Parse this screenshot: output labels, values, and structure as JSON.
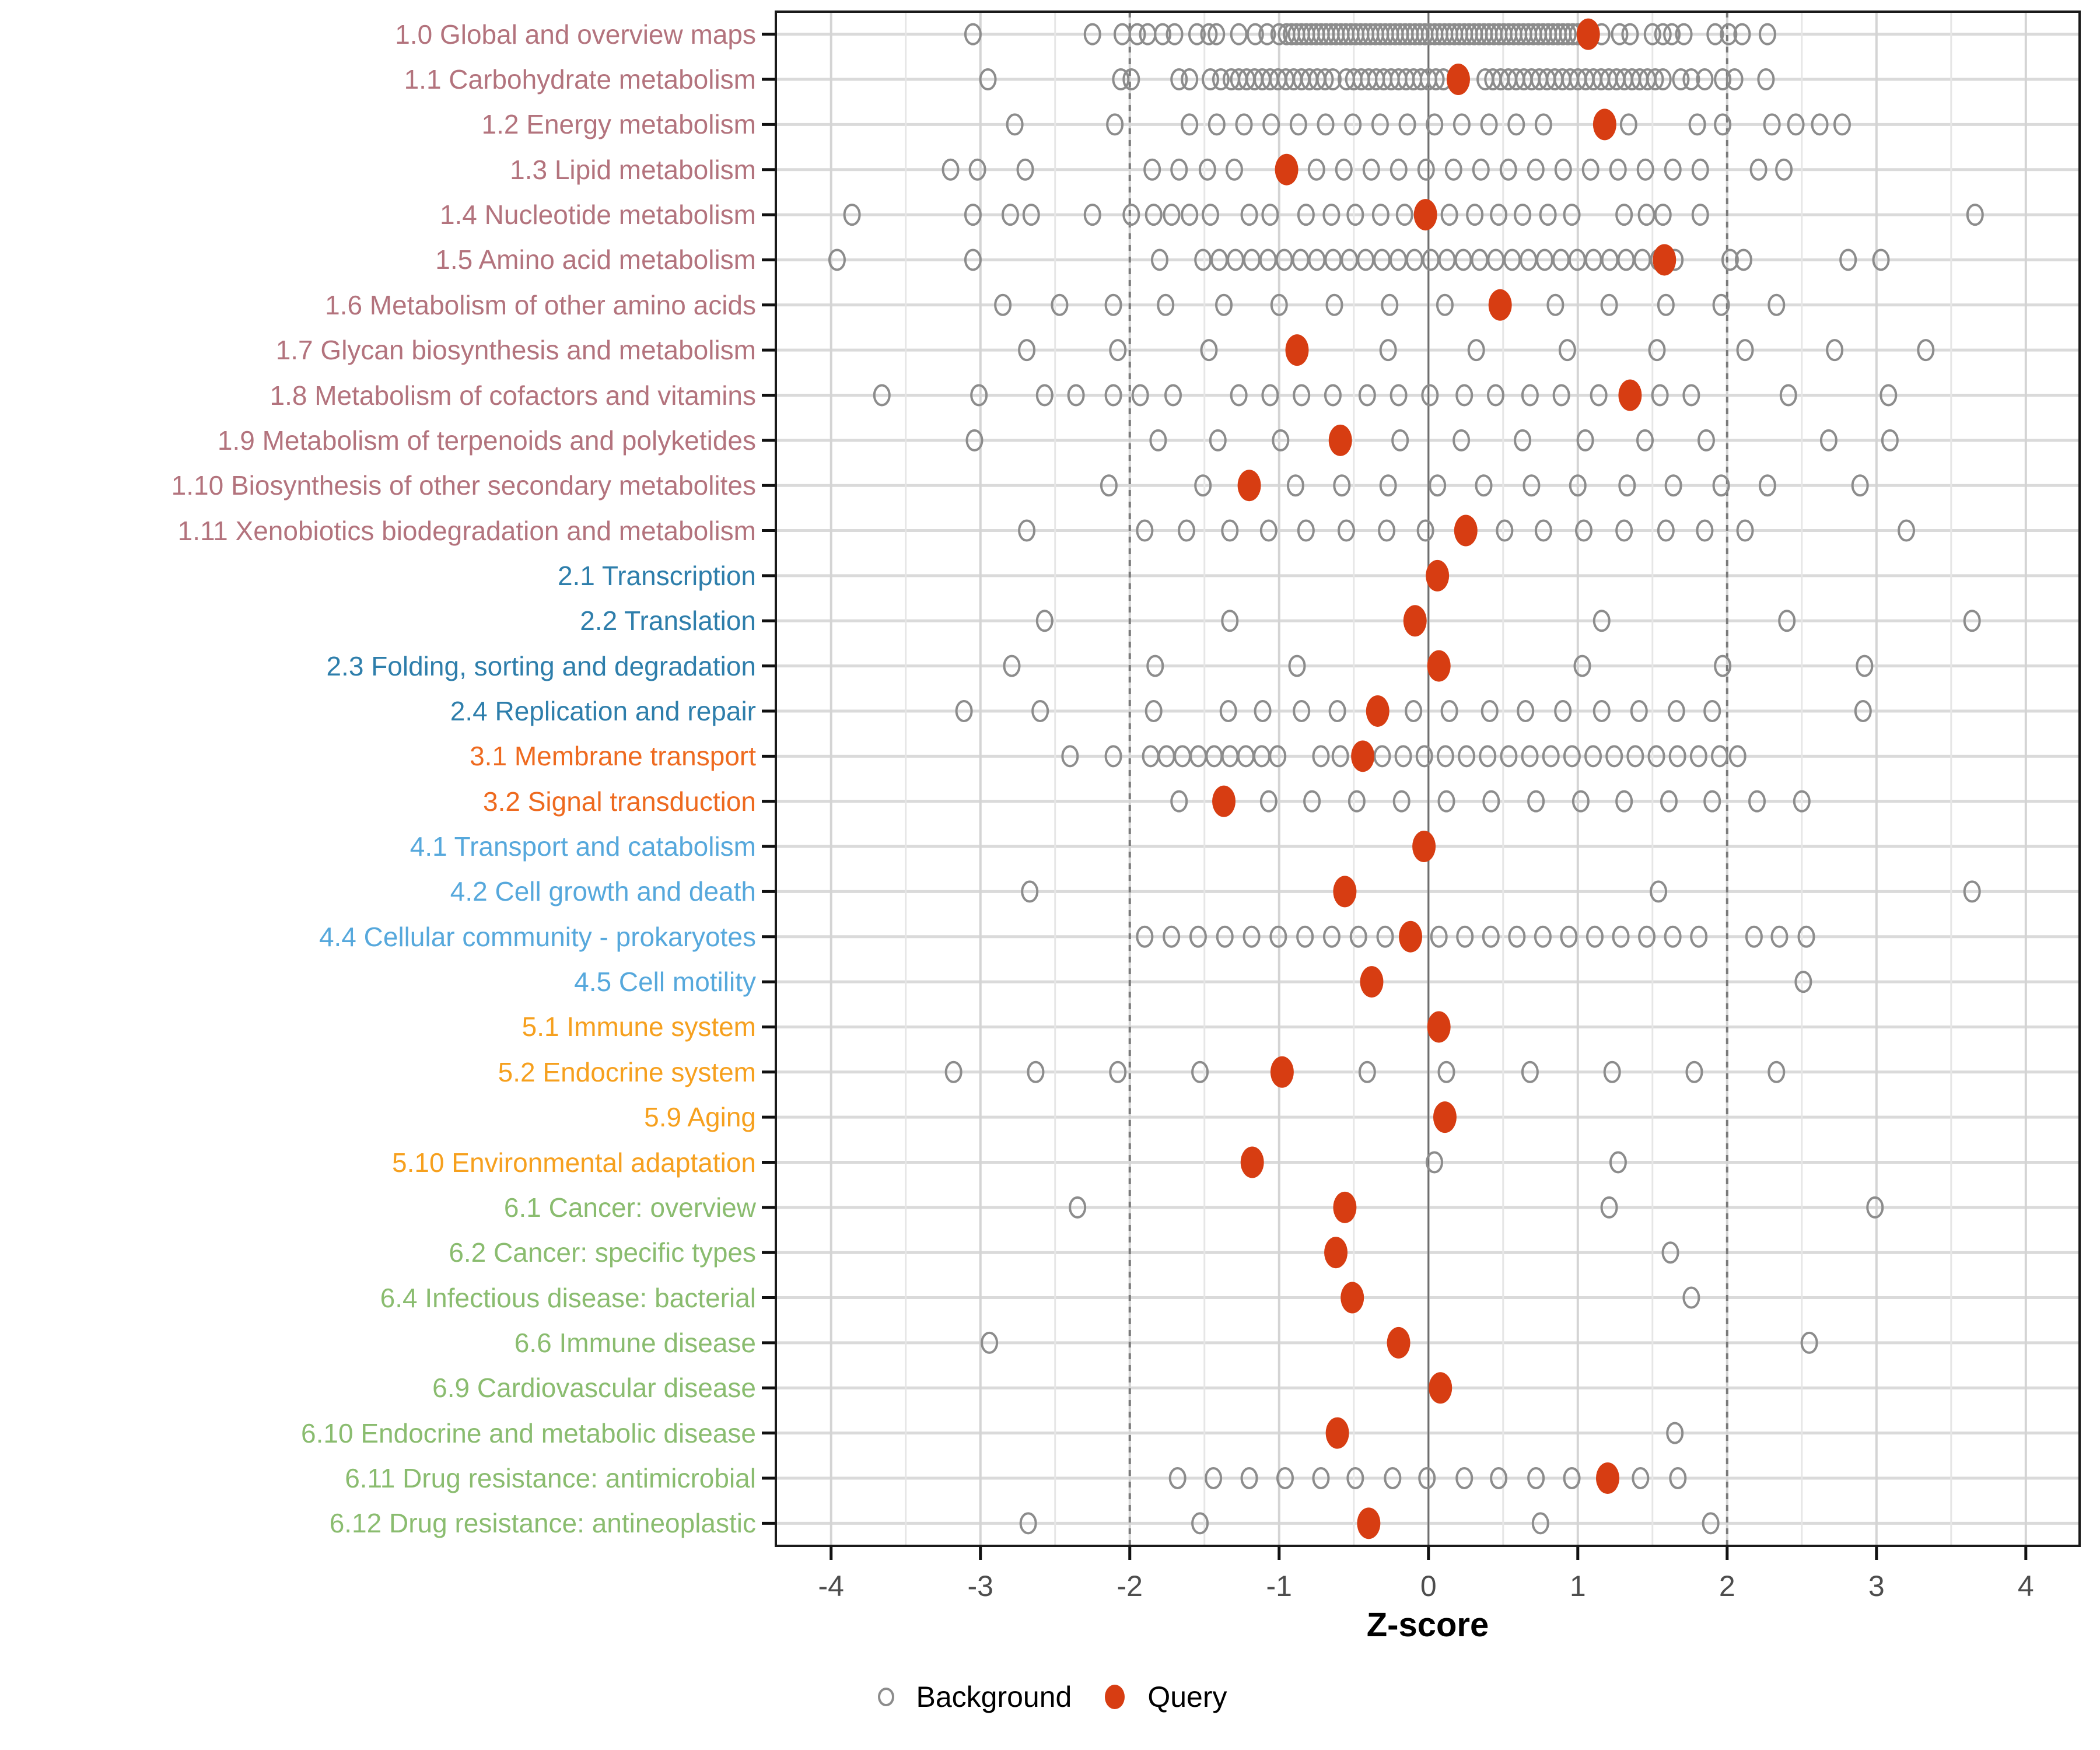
{
  "axis": {
    "xlabel": "Z-score",
    "ticks": [
      -4,
      -3,
      -2,
      -1,
      0,
      1,
      2,
      3,
      4
    ],
    "xlim": [
      -4.37,
      4.36
    ],
    "zero_line": 0,
    "dashed_lines": [
      -2,
      2
    ],
    "grid": "on",
    "legend_position": "bottom"
  },
  "legend": {
    "background_label": "Background",
    "query_label": "Query"
  },
  "colors": {
    "query": "#D73D12",
    "background_stroke": "#8C8C8C",
    "grid_major": "#D4D4D4",
    "grid_minor": "#E6E6E6",
    "row_gridline": "#DADADA",
    "threshold_dashed": "#7A7A7A",
    "zero_line": "#6E6E6E",
    "panel_border": "#1A1A1A",
    "tick_label": "#4D4D4D",
    "group_colors": {
      "metabolism": "#B3737D",
      "genetic-information-processing": "#2E7EAB",
      "environmental-information-processing": "#EE6A1F",
      "cellular-processes": "#56A8DC",
      "organismal-systems": "#F6A01E",
      "human-diseases": "#8ABC6F"
    }
  },
  "chart_data": {
    "type": "scatter",
    "orientation": "horizontal-strip",
    "xlabel": "Z-score",
    "series": [
      {
        "name": "Background"
      },
      {
        "name": "Query"
      }
    ],
    "rows": [
      {
        "label": "1.0 Global and overview maps",
        "group": "metabolism",
        "query": 1.07,
        "background": [
          -3.05,
          -2.25,
          -2.05,
          -1.95,
          -1.88,
          -1.78,
          -1.7,
          -1.55,
          -1.47,
          -1.42,
          -1.27,
          -1.16,
          -1.08,
          -1.0,
          1.16,
          1.28,
          1.35,
          1.5,
          1.57,
          1.63,
          1.71,
          1.92,
          2.01,
          2.1,
          2.27
        ],
        "background_bands": [
          [
            -0.95,
            1.0,
            60
          ]
        ]
      },
      {
        "label": "1.1 Carbohydrate metabolism",
        "group": "metabolism",
        "query": 0.2,
        "background": [
          -2.95,
          -2.06,
          -1.99,
          -1.67,
          -1.6,
          -1.46,
          -1.39,
          -1.32,
          1.69,
          1.76,
          1.85,
          1.97,
          2.05,
          2.26
        ],
        "background_bands": [
          [
            -1.27,
            -0.64,
            13
          ],
          [
            -0.55,
            0.1,
            14
          ],
          [
            0.38,
            1.57,
            24
          ]
        ]
      },
      {
        "label": "1.2 Energy metabolism",
        "group": "metabolism",
        "query": 1.18,
        "background": [
          -2.77,
          -2.1,
          1.34,
          1.8,
          1.97,
          2.3,
          2.46,
          2.62,
          2.77
        ],
        "background_bands": [
          [
            -1.6,
            0.77,
            14
          ]
        ]
      },
      {
        "label": "1.3 Lipid metabolism",
        "group": "metabolism",
        "query": -0.95,
        "background": [
          -3.2,
          -3.02,
          -2.7,
          -1.85,
          -1.67,
          -1.48,
          -1.3,
          2.21,
          2.38
        ],
        "background_bands": [
          [
            -0.75,
            1.82,
            15
          ]
        ]
      },
      {
        "label": "1.4 Nucleotide metabolism",
        "group": "metabolism",
        "query": -0.02,
        "background": [
          -3.86,
          -3.05,
          -2.8,
          -2.66,
          -2.25,
          -1.99,
          -1.84,
          -1.72,
          -1.6,
          -1.46,
          -1.2,
          -1.06,
          -0.82,
          -0.65,
          -0.49,
          -0.32,
          -0.16,
          0.14,
          0.31,
          0.47,
          0.63,
          0.8,
          0.96,
          1.31,
          1.46,
          1.57,
          1.82,
          3.66
        ],
        "background_bands": []
      },
      {
        "label": "1.5 Amino acid metabolism",
        "group": "metabolism",
        "query": 1.58,
        "background": [
          -3.96,
          -3.05,
          -1.8,
          2.02,
          2.11,
          2.81,
          3.03
        ],
        "background_bands": [
          [
            -1.51,
            1.65,
            30
          ]
        ]
      },
      {
        "label": "1.6 Metabolism of other amino acids",
        "group": "metabolism",
        "query": 0.48,
        "background": [
          -2.85,
          -2.47,
          -2.11,
          -1.76,
          -1.37,
          -1.0,
          -0.63,
          -0.26,
          0.11,
          0.85,
          1.21,
          1.59,
          1.96,
          2.33
        ],
        "background_bands": []
      },
      {
        "label": "1.7 Glycan biosynthesis and metabolism",
        "group": "metabolism",
        "query": -0.88,
        "background": [
          -2.69,
          -2.08,
          -1.47,
          -0.27,
          0.32,
          0.93,
          1.53,
          2.12,
          2.72,
          3.33
        ],
        "background_bands": []
      },
      {
        "label": "1.8 Metabolism of cofactors and vitamins",
        "group": "metabolism",
        "query": 1.35,
        "background": [
          -3.66,
          -3.01,
          -2.57,
          -2.36,
          -2.11,
          -1.93,
          -1.71,
          -1.27,
          -1.06,
          -0.85,
          -0.64,
          -0.41,
          -0.2,
          0.01,
          0.24,
          0.45,
          0.68,
          0.89,
          1.14,
          1.55,
          1.76,
          2.41,
          3.08
        ],
        "background_bands": []
      },
      {
        "label": "1.9 Metabolism of terpenoids and polyketides",
        "group": "metabolism",
        "query": -0.59,
        "background": [
          -3.04,
          -1.81,
          -1.41,
          -0.99,
          -0.19,
          0.22,
          0.63,
          1.05,
          1.45,
          1.86,
          2.68,
          3.09
        ],
        "background_bands": []
      },
      {
        "label": "1.10 Biosynthesis of other secondary metabolites",
        "group": "metabolism",
        "query": -1.2,
        "background": [
          -2.14,
          -1.51,
          -0.89,
          -0.58,
          -0.27,
          0.06,
          0.37,
          0.69,
          1.0,
          1.33,
          1.64,
          1.96,
          2.27,
          2.89
        ],
        "background_bands": []
      },
      {
        "label": "1.11 Xenobiotics biodegradation and metabolism",
        "group": "metabolism",
        "query": 0.25,
        "background": [
          -2.69,
          -1.9,
          -1.62,
          -1.33,
          -1.07,
          -0.82,
          -0.55,
          -0.28,
          -0.02,
          0.51,
          0.77,
          1.04,
          1.31,
          1.59,
          1.85,
          2.12,
          3.2
        ],
        "background_bands": []
      },
      {
        "label": "2.1 Transcription",
        "group": "genetic-information-processing",
        "query": 0.06,
        "background": [],
        "background_bands": []
      },
      {
        "label": "2.2 Translation",
        "group": "genetic-information-processing",
        "query": -0.09,
        "background": [
          -2.57,
          -1.33,
          1.16,
          2.4,
          3.64
        ],
        "background_bands": []
      },
      {
        "label": "2.3 Folding, sorting and degradation",
        "group": "genetic-information-processing",
        "query": 0.07,
        "background": [
          -2.79,
          -1.83,
          -0.88,
          1.03,
          1.97,
          2.92
        ],
        "background_bands": []
      },
      {
        "label": "2.4 Replication and repair",
        "group": "genetic-information-processing",
        "query": -0.34,
        "background": [
          -3.11,
          -2.6,
          -1.84,
          -1.34,
          -1.11,
          -0.85,
          -0.61,
          -0.1,
          0.14,
          0.41,
          0.65,
          0.9,
          1.16,
          1.41,
          1.66,
          1.9,
          2.91
        ],
        "background_bands": []
      },
      {
        "label": "3.1 Membrane transport",
        "group": "environmental-information-processing",
        "query": -0.44,
        "background": [
          -2.4,
          -2.11,
          -0.72,
          -0.59,
          2.07
        ],
        "background_bands": [
          [
            -1.86,
            -1.01,
            9
          ],
          [
            -0.31,
            1.95,
            17
          ]
        ]
      },
      {
        "label": "3.2 Signal transduction",
        "group": "environmental-information-processing",
        "query": -1.37,
        "background": [
          -1.67,
          -1.07,
          -0.78,
          -0.48,
          -0.18,
          0.12,
          0.42,
          0.72,
          1.02,
          1.31,
          1.61,
          1.9,
          2.2,
          2.5
        ],
        "background_bands": []
      },
      {
        "label": "4.1 Transport and catabolism",
        "group": "cellular-processes",
        "query": -0.03,
        "background": [],
        "background_bands": []
      },
      {
        "label": "4.2 Cell growth and death",
        "group": "cellular-processes",
        "query": -0.56,
        "background": [
          -2.67,
          1.54,
          3.64
        ],
        "background_bands": []
      },
      {
        "label": "4.4 Cellular community - prokaryotes",
        "group": "cellular-processes",
        "query": -0.12,
        "background": [
          2.18,
          2.35,
          2.53
        ],
        "background_bands": [
          [
            -1.9,
            -0.29,
            10
          ],
          [
            0.07,
            1.81,
            11
          ]
        ]
      },
      {
        "label": "4.5 Cell motility",
        "group": "cellular-processes",
        "query": -0.38,
        "background": [
          2.51
        ],
        "background_bands": []
      },
      {
        "label": "5.1 Immune system",
        "group": "organismal-systems",
        "query": 0.07,
        "background": [],
        "background_bands": []
      },
      {
        "label": "5.2 Endocrine system",
        "group": "organismal-systems",
        "query": -0.98,
        "background": [
          -3.18,
          -2.63,
          -2.08,
          -1.53,
          -0.41,
          0.12,
          0.68,
          1.23,
          1.78,
          2.33
        ],
        "background_bands": []
      },
      {
        "label": "5.9 Aging",
        "group": "organismal-systems",
        "query": 0.11,
        "background": [],
        "background_bands": []
      },
      {
        "label": "5.10 Environmental adaptation",
        "group": "organismal-systems",
        "query": -1.18,
        "background": [
          0.04,
          1.27
        ],
        "background_bands": []
      },
      {
        "label": "6.1 Cancer: overview",
        "group": "human-diseases",
        "query": -0.56,
        "background": [
          -2.35,
          1.21,
          2.99
        ],
        "background_bands": []
      },
      {
        "label": "6.2 Cancer: specific types",
        "group": "human-diseases",
        "query": -0.62,
        "background": [
          1.62
        ],
        "background_bands": []
      },
      {
        "label": "6.4 Infectious disease: bacterial",
        "group": "human-diseases",
        "query": -0.51,
        "background": [
          1.76
        ],
        "background_bands": []
      },
      {
        "label": "6.6 Immune disease",
        "group": "human-diseases",
        "query": -0.2,
        "background": [
          -2.94,
          2.55
        ],
        "background_bands": []
      },
      {
        "label": "6.9 Cardiovascular disease",
        "group": "human-diseases",
        "query": 0.08,
        "background": [],
        "background_bands": []
      },
      {
        "label": "6.10 Endocrine and metabolic disease",
        "group": "human-diseases",
        "query": -0.61,
        "background": [
          1.65
        ],
        "background_bands": []
      },
      {
        "label": "6.11 Drug resistance: antimicrobial",
        "group": "human-diseases",
        "query": 1.2,
        "background": [
          -1.68,
          -1.44,
          -1.2,
          -0.96,
          -0.72,
          -0.49,
          -0.24,
          -0.01,
          0.24,
          0.47,
          0.72,
          0.96,
          1.42,
          1.67
        ],
        "background_bands": []
      },
      {
        "label": "6.12 Drug resistance: antineoplastic",
        "group": "human-diseases",
        "query": -0.4,
        "background": [
          -2.68,
          -1.53,
          0.75,
          1.89
        ],
        "background_bands": []
      }
    ]
  }
}
